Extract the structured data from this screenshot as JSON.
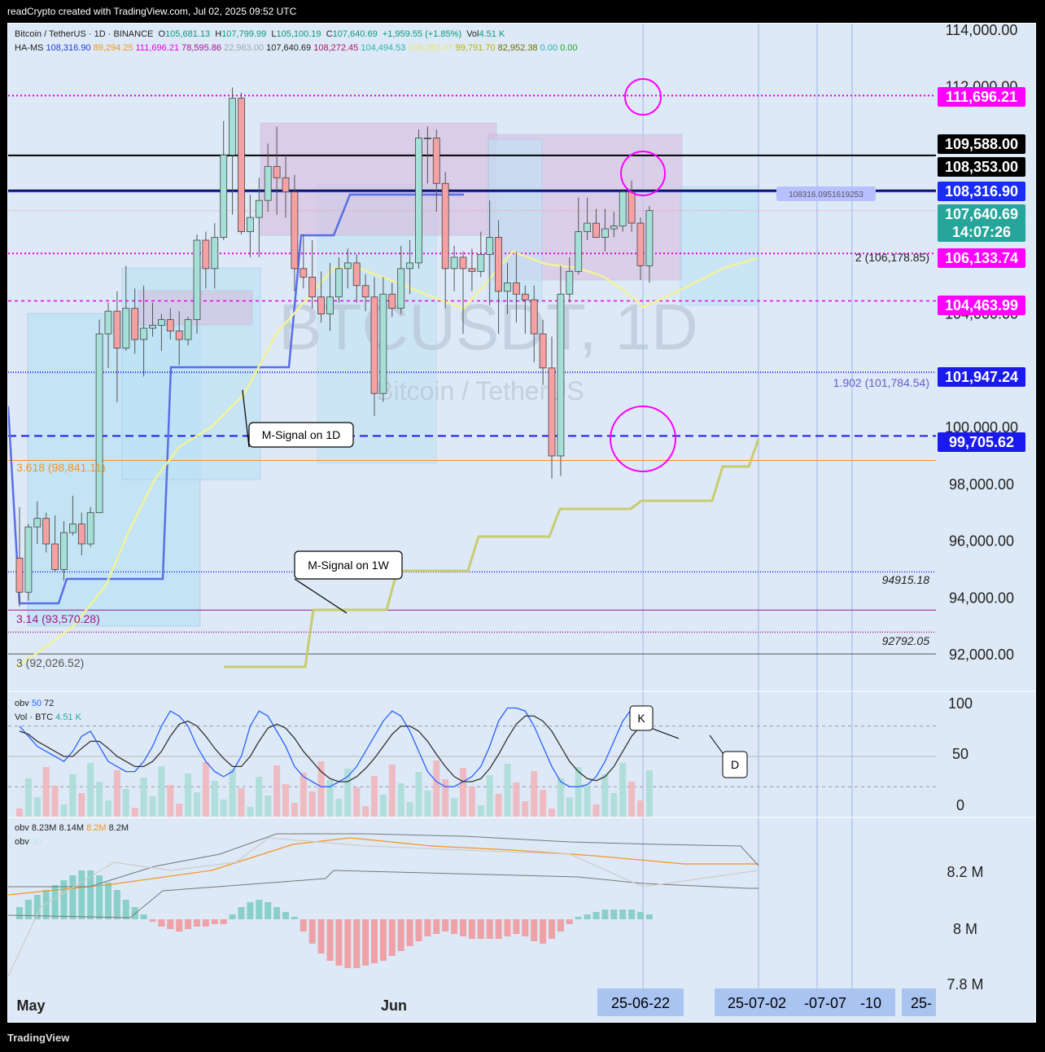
{
  "header": {
    "title": "readCrypto created with TradingView.com, Jul 02, 2025 09:52 UTC"
  },
  "footer": {
    "brand": "TradingView"
  },
  "legend": {
    "line1": {
      "symbol": "Bitcoin / TetherUS · 1D · BINANCE",
      "o_label": "O",
      "o": "105,681.13",
      "h_label": "H",
      "h": "107,799.99",
      "l_label": "L",
      "l": "105,100.19",
      "c_label": "C",
      "c": "107,640.69",
      "chg": "+1,959.55 (+1.85%)",
      "vol_label": "Vol",
      "vol": "4.51 K"
    },
    "line2": {
      "name": "HA-MS",
      "values": [
        {
          "v": "108,316.90",
          "color": "#1e3cd8"
        },
        {
          "v": "89,294.25",
          "color": "#f5941d"
        },
        {
          "v": "111,696.21",
          "color": "#e600e6"
        },
        {
          "v": "78,595.86",
          "color": "#a0158f"
        },
        {
          "v": "22,963.00",
          "color": "#9aa"
        },
        {
          "v": "107,640.69",
          "color": "#222"
        },
        {
          "v": "108,272.45",
          "color": "#b0126a"
        },
        {
          "v": "104,494.53",
          "color": "#26b5a8"
        },
        {
          "v": "106,282.47",
          "color": "#e8e86a"
        },
        {
          "v": "99,791.70",
          "color": "#b8b400"
        },
        {
          "v": "82,952.38",
          "color": "#6b6b00"
        },
        {
          "v": "0.00",
          "color": "#26b5a8"
        },
        {
          "v": "0.00",
          "color": "#22a022"
        }
      ]
    }
  },
  "watermark": {
    "symbol": "BTCUSDT, 1D",
    "name": "Bitcoin / TetherUS"
  },
  "price_axis": {
    "ticks": [
      "114,000.00",
      "112,000.00",
      "104,000.00",
      "100,000.00",
      "98,000.00",
      "96,000.00",
      "94,000.00",
      "92,000.00"
    ]
  },
  "price_badges": [
    {
      "text": "111,696.21",
      "bg": "#ff00ff",
      "fg": "#ffffff"
    },
    {
      "text": "109,588.00",
      "bg": "#000000",
      "fg": "#ffffff"
    },
    {
      "text": "108,353.00",
      "bg": "#000000",
      "fg": "#ffffff"
    },
    {
      "text": "108,316.90",
      "bg": "#1a2cf5",
      "fg": "#ffffff"
    },
    {
      "text": "107,640.69",
      "bg": "#26a69a",
      "fg": "#ffffff"
    },
    {
      "text": "14:07:26",
      "bg": "#26a69a",
      "fg": "#ffffff"
    },
    {
      "text": "106,133.74",
      "bg": "#ff00ff",
      "fg": "#ffffff"
    },
    {
      "text": "104,463.99",
      "bg": "#ff00ff",
      "fg": "#ffffff"
    },
    {
      "text": "101,947.24",
      "bg": "#1a1aee",
      "fg": "#ffffff"
    },
    {
      "text": "99,705.62",
      "bg": "#1a1aee",
      "fg": "#ffffff"
    }
  ],
  "annotations": {
    "fib2": "2 (106,178.85)",
    "fib1902": "1.902 (101,784.54)",
    "fib3618": "3.618 (98,841.11)",
    "fib314": "3.14 (93,570.28)",
    "fib3": "3 (92,026.52)",
    "lvl94915": "94915.18",
    "lvl92792": "92792.05",
    "callout_1d": "M-Signal on 1D",
    "callout_1w": "M-Signal on 1W",
    "ghost_label": "108316.0951619253",
    "k_label": "K",
    "d_label": "D"
  },
  "stoch": {
    "legend1_name": "obv",
    "legend1_a": "50",
    "legend1_b": "72",
    "legend2_name": "Vol · BTC",
    "legend2_v": "4.51 K",
    "axis": [
      "100",
      "50",
      "0"
    ]
  },
  "obv": {
    "legend1_name": "obv",
    "legend1_vals": [
      {
        "v": "8.23M",
        "color": "#222"
      },
      {
        "v": "8.14M",
        "color": "#222"
      },
      {
        "v": "8.2M",
        "color": "#f5941d"
      },
      {
        "v": "8.2M",
        "color": "#222"
      }
    ],
    "legend2_name": "obv",
    "legend2_v": "30",
    "axis": [
      "8.2 M",
      "8 M",
      "7.8 M"
    ]
  },
  "time_axis": {
    "labels": [
      "May",
      "Jun"
    ],
    "badges": [
      "25-06-22",
      "25-07-02",
      "-07-07",
      "-10",
      "25-"
    ]
  },
  "chart_data": {
    "type": "candlestick",
    "symbol": "BTCUSDT",
    "interval": "1D",
    "exchange": "BINANCE",
    "ylim": [
      91000,
      115000
    ],
    "candles": [
      [
        95400,
        97200,
        93700,
        94200
      ],
      [
        94200,
        96600,
        93900,
        96500
      ],
      [
        96500,
        97400,
        95900,
        96800
      ],
      [
        96800,
        97000,
        95600,
        95900
      ],
      [
        95900,
        96900,
        94900,
        95000
      ],
      [
        95000,
        96700,
        94600,
        96300
      ],
      [
        96300,
        97600,
        96200,
        96600
      ],
      [
        96600,
        97000,
        95500,
        95900
      ],
      [
        95900,
        97200,
        95800,
        97000
      ],
      [
        97000,
        103800,
        97000,
        103300
      ],
      [
        103300,
        104400,
        102100,
        104100
      ],
      [
        104100,
        104800,
        100900,
        102800
      ],
      [
        102800,
        105700,
        102700,
        104200
      ],
      [
        104200,
        104900,
        102600,
        103100
      ],
      [
        103100,
        105000,
        101800,
        103500
      ],
      [
        103500,
        104400,
        103200,
        103600
      ],
      [
        103600,
        104000,
        102700,
        103800
      ],
      [
        103800,
        104200,
        103100,
        103400
      ],
      [
        103400,
        104100,
        102200,
        103100
      ],
      [
        103100,
        103900,
        102900,
        103800
      ],
      [
        103800,
        106800,
        103300,
        106600
      ],
      [
        106600,
        106900,
        104900,
        105600
      ],
      [
        105600,
        107200,
        104900,
        106700
      ],
      [
        106700,
        110800,
        106600,
        109600
      ],
      [
        109600,
        111980,
        107500,
        111600
      ],
      [
        111600,
        111800,
        106800,
        106900
      ],
      [
        106900,
        108200,
        106000,
        107400
      ],
      [
        107400,
        108800,
        106000,
        108000
      ],
      [
        108000,
        110000,
        107600,
        109200
      ],
      [
        109200,
        110600,
        107500,
        108800
      ],
      [
        108800,
        109600,
        107400,
        108300
      ],
      [
        108300,
        108900,
        104800,
        105600
      ],
      [
        105600,
        106800,
        104900,
        105300
      ],
      [
        105300,
        106600,
        104200,
        104600
      ],
      [
        104600,
        105500,
        103700,
        104000
      ],
      [
        104000,
        105800,
        103400,
        104600
      ],
      [
        104600,
        106000,
        104400,
        105600
      ],
      [
        105600,
        106300,
        104900,
        105800
      ],
      [
        105800,
        106100,
        104400,
        105000
      ],
      [
        105000,
        105400,
        104100,
        104600
      ],
      [
        104600,
        105300,
        100400,
        101200
      ],
      [
        101200,
        105300,
        100900,
        104700
      ],
      [
        104700,
        105100,
        103900,
        104200
      ],
      [
        104200,
        106400,
        104000,
        105600
      ],
      [
        105600,
        106600,
        104700,
        105800
      ],
      [
        105800,
        110500,
        105600,
        110200
      ],
      [
        110200,
        110600,
        108600,
        110200
      ],
      [
        110200,
        110500,
        107600,
        108600
      ],
      [
        108600,
        109000,
        104200,
        105600
      ],
      [
        105600,
        106400,
        104800,
        106000
      ],
      [
        106000,
        106200,
        103300,
        105600
      ],
      [
        105600,
        106300,
        104800,
        105500
      ],
      [
        105500,
        106900,
        105300,
        106100
      ],
      [
        106100,
        108000,
        104300,
        106700
      ],
      [
        106700,
        107300,
        103300,
        104800
      ],
      [
        104800,
        105800,
        104000,
        105100
      ],
      [
        105100,
        106200,
        103700,
        104700
      ],
      [
        104700,
        105000,
        103300,
        104500
      ],
      [
        104500,
        105000,
        102300,
        103300
      ],
      [
        103300,
        103800,
        101500,
        102100
      ],
      [
        102100,
        103200,
        98200,
        99000
      ],
      [
        99000,
        105700,
        98300,
        104700
      ],
      [
        104700,
        106000,
        104400,
        105500
      ],
      [
        105500,
        108100,
        105400,
        106900
      ],
      [
        106900,
        108100,
        106600,
        107200
      ],
      [
        107200,
        107700,
        106800,
        106700
      ],
      [
        106700,
        107700,
        106200,
        107000
      ],
      [
        107000,
        107600,
        106700,
        107100
      ],
      [
        107100,
        108400,
        106900,
        108300
      ],
      [
        108300,
        108700,
        106900,
        107200
      ],
      [
        107200,
        107400,
        105200,
        105700
      ],
      [
        105700,
        107800,
        105100,
        107640
      ]
    ],
    "overlays": [
      {
        "name": "M-Signal on 1D",
        "color": "#f2f29a"
      },
      {
        "name": "M-Signal on 1W",
        "color": "#c8cc70"
      },
      {
        "name": "HA-MS",
        "color": "#5a6ee8"
      }
    ],
    "levels": [
      111696.21,
      109588.0,
      108353.0,
      108316.9,
      107640.69,
      106133.74,
      104463.99,
      101947.24,
      99705.62,
      98841.11,
      94915.18,
      93570.28,
      92792.05,
      92026.52
    ],
    "stoch_rsi": {
      "k": [
        80,
        70,
        60,
        55,
        50,
        45,
        55,
        70,
        75,
        60,
        45,
        40,
        35,
        35,
        45,
        60,
        80,
        95,
        90,
        80,
        60,
        45,
        35,
        30,
        35,
        50,
        80,
        95,
        90,
        75,
        60,
        40,
        30,
        25,
        20,
        20,
        25,
        30,
        40,
        55,
        70,
        85,
        95,
        90,
        75,
        55,
        35,
        25,
        20,
        20,
        25,
        30,
        40,
        60,
        85,
        98,
        98,
        95,
        80,
        60,
        40,
        25,
        20,
        20,
        22,
        30,
        45,
        65,
        85,
        97,
        95,
        80
      ],
      "d": [
        75,
        72,
        65,
        60,
        55,
        50,
        50,
        58,
        65,
        65,
        58,
        50,
        45,
        40,
        40,
        45,
        55,
        70,
        82,
        85,
        80,
        70,
        58,
        48,
        40,
        40,
        50,
        65,
        78,
        82,
        78,
        68,
        55,
        45,
        35,
        28,
        25,
        25,
        30,
        38,
        48,
        60,
        72,
        80,
        80,
        75,
        65,
        52,
        40,
        30,
        25,
        25,
        28,
        38,
        52,
        68,
        82,
        90,
        90,
        85,
        75,
        60,
        45,
        35,
        28,
        26,
        30,
        40,
        55,
        70,
        80,
        85
      ]
    },
    "obv_osc": {
      "histogram": [
        0.05,
        0.08,
        0.1,
        0.12,
        0.14,
        0.16,
        0.18,
        0.2,
        0.2,
        0.18,
        0.15,
        0.12,
        0.08,
        0.05,
        0.02,
        -0.01,
        -0.03,
        -0.04,
        -0.05,
        -0.04,
        -0.03,
        -0.03,
        -0.02,
        -0.02,
        0.02,
        0.05,
        0.07,
        0.08,
        0.07,
        0.05,
        0.03,
        0.01,
        -0.05,
        -0.1,
        -0.14,
        -0.17,
        -0.19,
        -0.2,
        -0.2,
        -0.19,
        -0.18,
        -0.17,
        -0.15,
        -0.13,
        -0.11,
        -0.09,
        -0.07,
        -0.06,
        -0.05,
        -0.06,
        -0.07,
        -0.08,
        -0.08,
        -0.08,
        -0.08,
        -0.07,
        -0.06,
        -0.07,
        -0.09,
        -0.1,
        -0.08,
        -0.05,
        -0.02,
        0.01,
        0.02,
        0.03,
        0.04,
        0.04,
        0.04,
        0.04,
        0.03,
        0.02
      ]
    }
  }
}
